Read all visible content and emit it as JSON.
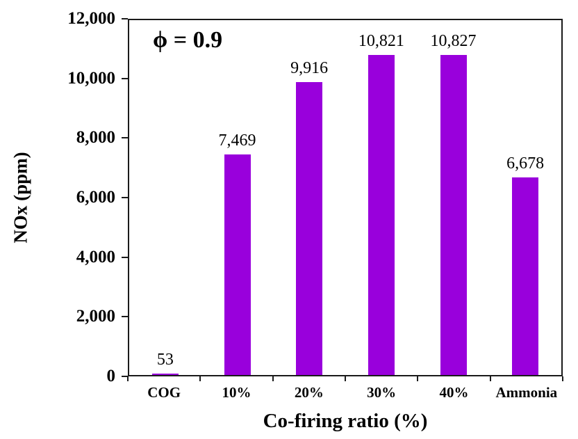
{
  "chart_data": {
    "type": "bar",
    "title": "",
    "annotation": "ϕ = 0.9",
    "categories": [
      "COG",
      "10%",
      "20%",
      "30%",
      "40%",
      "Ammonia"
    ],
    "values": [
      53,
      7469,
      9916,
      10821,
      10827,
      6678
    ],
    "value_labels": [
      "53",
      "7,469",
      "9,916",
      "10,821",
      "10,827",
      "6,678"
    ],
    "xlabel": "Co-firing ratio (%)",
    "ylabel": "NOx (ppm)",
    "ylim": [
      0,
      12000
    ],
    "ytick_step": 2000,
    "ytick_labels": [
      "0",
      "2,000",
      "4,000",
      "6,000",
      "8,000",
      "10,000",
      "12,000"
    ],
    "bar_color": "#9900DC",
    "grid": false,
    "legend": false
  }
}
